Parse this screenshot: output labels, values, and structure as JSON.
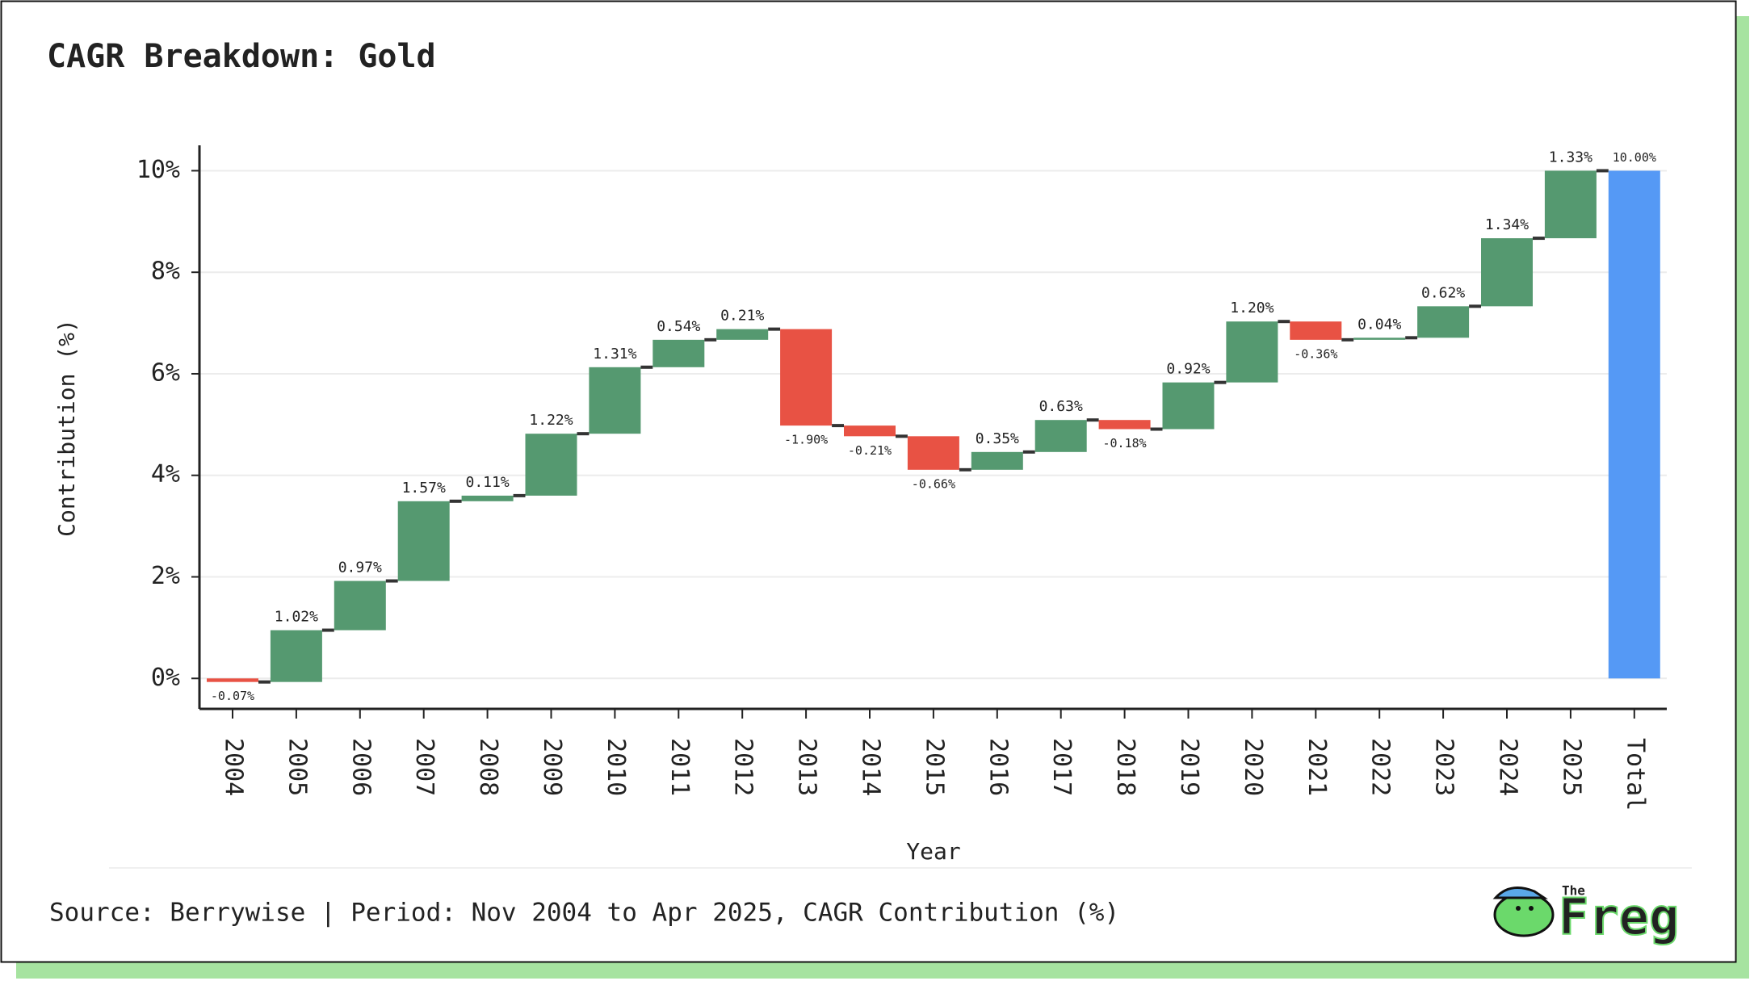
{
  "chart_data": {
    "type": "waterfall",
    "title": "CAGR Breakdown: Gold",
    "x_label": "Year",
    "y_label": "Contribution (%)",
    "source": "Source: Berrywise | Period: Nov 2004 to Apr 2025, CAGR Contribution (%)",
    "logo": {
      "small": "The",
      "large": "Freg"
    },
    "categories": [
      "2004",
      "2005",
      "2006",
      "2007",
      "2008",
      "2009",
      "2010",
      "2011",
      "2012",
      "2013",
      "2014",
      "2015",
      "2016",
      "2017",
      "2018",
      "2019",
      "2020",
      "2021",
      "2022",
      "2023",
      "2024",
      "2025",
      "Total"
    ],
    "values": [
      -0.07,
      1.02,
      0.97,
      1.57,
      0.11,
      1.22,
      1.31,
      0.54,
      0.21,
      -1.9,
      -0.21,
      -0.66,
      0.35,
      0.63,
      -0.18,
      0.92,
      1.2,
      -0.36,
      0.04,
      0.62,
      1.34,
      1.33,
      10.0
    ],
    "value_labels": [
      "-0.07%",
      "1.02%",
      "0.97%",
      "1.57%",
      "0.11%",
      "1.22%",
      "1.31%",
      "0.54%",
      "0.21%",
      "-1.90%",
      "-0.21%",
      "-0.66%",
      "0.35%",
      "0.63%",
      "-0.18%",
      "0.92%",
      "1.20%",
      "-0.36%",
      "0.04%",
      "0.62%",
      "1.34%",
      "1.33%",
      "10.00%"
    ],
    "increase_color": "#559970",
    "decrease_color": "#e85244",
    "total_color": "#5599f5",
    "ylim": [
      -0.6,
      10.5
    ],
    "yticks": [
      {
        "value": 0,
        "label": "0%"
      },
      {
        "value": 2,
        "label": "2%"
      },
      {
        "value": 4,
        "label": "4%"
      },
      {
        "value": 6,
        "label": "6%"
      },
      {
        "value": 8,
        "label": "8%"
      },
      {
        "value": 10,
        "label": "10%"
      }
    ],
    "grid": true
  }
}
